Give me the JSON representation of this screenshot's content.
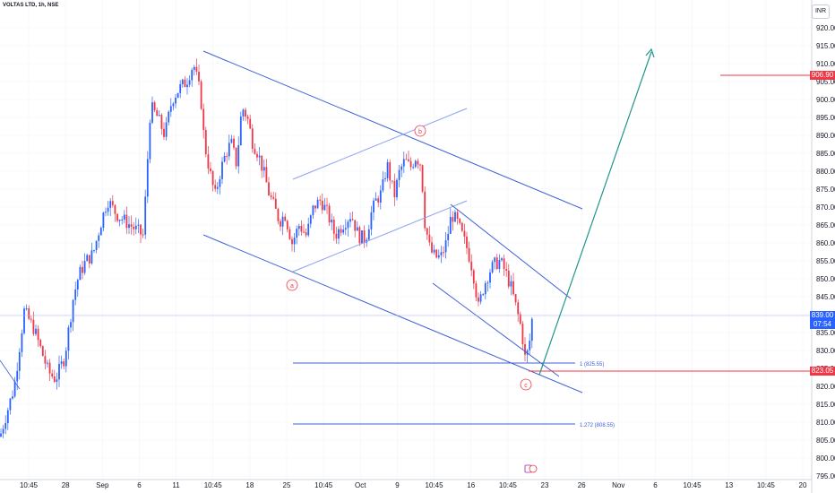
{
  "header": {
    "symbol_label": "VOLTAS LTD, 1h, NSE",
    "currency_label": "INR"
  },
  "price_tags": {
    "last_price": "839.00",
    "countdown": "07:54",
    "line_red_1": "906.90",
    "line_red_2": "823.05"
  },
  "colors": {
    "up": "#2962ff",
    "down": "#f23645",
    "channel": "#3f5fd6",
    "arrow": "#22958c",
    "grid": "#f0f3fa"
  },
  "annotations": {
    "wave_a": "a",
    "wave_b": "b",
    "wave_c": "c",
    "fib_1": "1 (825.55)",
    "fib_1272": "1.272 (808.55)"
  },
  "chart_data": {
    "type": "candlestick",
    "symbol": "VOLTAS LTD",
    "interval": "1h",
    "exchange": "NSE",
    "currency": "INR",
    "ylim": [
      792,
      924
    ],
    "y_ticks": [
      795,
      800,
      805,
      810,
      815,
      820,
      825,
      830,
      835,
      840,
      845,
      850,
      855,
      860,
      865,
      870,
      875,
      880,
      885,
      890,
      895,
      900,
      905,
      910,
      915,
      920
    ],
    "x_ticks": [
      "10:45",
      "28",
      "Sep",
      "6",
      "11",
      "10:45",
      "18",
      "25",
      "10:45",
      "Oct",
      "9",
      "10:45",
      "16",
      "10:45",
      "23",
      "26",
      "Nov",
      "6",
      "10:45",
      "13",
      "10:45",
      "20"
    ],
    "last_price": 839.0,
    "horizontal_lines": [
      906.9,
      823.05,
      839.0
    ],
    "fibonacci": [
      {
        "ratio": "1",
        "price": 825.55
      },
      {
        "ratio": "1.272",
        "price": 808.55
      }
    ],
    "waves": [
      {
        "label": "a",
        "price": 851
      },
      {
        "label": "b",
        "price": 888
      },
      {
        "label": "c",
        "price": 823
      }
    ],
    "path": [
      [
        0,
        806
      ],
      [
        16,
        820
      ],
      [
        27,
        841
      ],
      [
        38,
        836
      ],
      [
        46,
        830
      ],
      [
        54,
        824
      ],
      [
        62,
        822
      ],
      [
        72,
        828
      ],
      [
        82,
        845
      ],
      [
        88,
        851
      ],
      [
        96,
        855
      ],
      [
        104,
        857
      ],
      [
        112,
        865
      ],
      [
        120,
        872
      ],
      [
        130,
        868
      ],
      [
        140,
        866
      ],
      [
        150,
        864
      ],
      [
        160,
        862
      ],
      [
        168,
        898
      ],
      [
        176,
        895
      ],
      [
        184,
        890
      ],
      [
        192,
        900
      ],
      [
        200,
        903
      ],
      [
        208,
        905
      ],
      [
        216,
        910
      ],
      [
        224,
        901
      ],
      [
        228,
        888
      ],
      [
        234,
        880
      ],
      [
        240,
        873
      ],
      [
        246,
        880
      ],
      [
        252,
        885
      ],
      [
        258,
        888
      ],
      [
        264,
        882
      ],
      [
        270,
        898
      ],
      [
        276,
        895
      ],
      [
        282,
        888
      ],
      [
        288,
        885
      ],
      [
        294,
        880
      ],
      [
        300,
        874
      ],
      [
        306,
        870
      ],
      [
        312,
        866
      ],
      [
        318,
        868
      ],
      [
        326,
        860
      ],
      [
        334,
        865
      ],
      [
        342,
        862
      ],
      [
        350,
        870
      ],
      [
        358,
        872
      ],
      [
        366,
        868
      ],
      [
        374,
        862
      ],
      [
        382,
        865
      ],
      [
        392,
        868
      ],
      [
        400,
        862
      ],
      [
        408,
        861
      ],
      [
        414,
        868
      ],
      [
        420,
        872
      ],
      [
        426,
        874
      ],
      [
        432,
        882
      ],
      [
        440,
        873
      ],
      [
        446,
        880
      ],
      [
        452,
        883
      ],
      [
        458,
        881
      ],
      [
        464,
        884
      ],
      [
        470,
        882
      ],
      [
        474,
        866
      ],
      [
        480,
        858
      ],
      [
        486,
        856
      ],
      [
        492,
        856
      ],
      [
        498,
        860
      ],
      [
        504,
        868
      ],
      [
        510,
        866
      ],
      [
        516,
        862
      ],
      [
        522,
        858
      ],
      [
        528,
        852
      ],
      [
        534,
        842
      ],
      [
        540,
        848
      ],
      [
        546,
        852
      ],
      [
        552,
        854
      ],
      [
        558,
        855
      ],
      [
        564,
        852
      ],
      [
        570,
        848
      ],
      [
        576,
        842
      ],
      [
        582,
        836
      ],
      [
        586,
        828
      ],
      [
        590,
        830
      ],
      [
        594,
        839
      ]
    ]
  }
}
